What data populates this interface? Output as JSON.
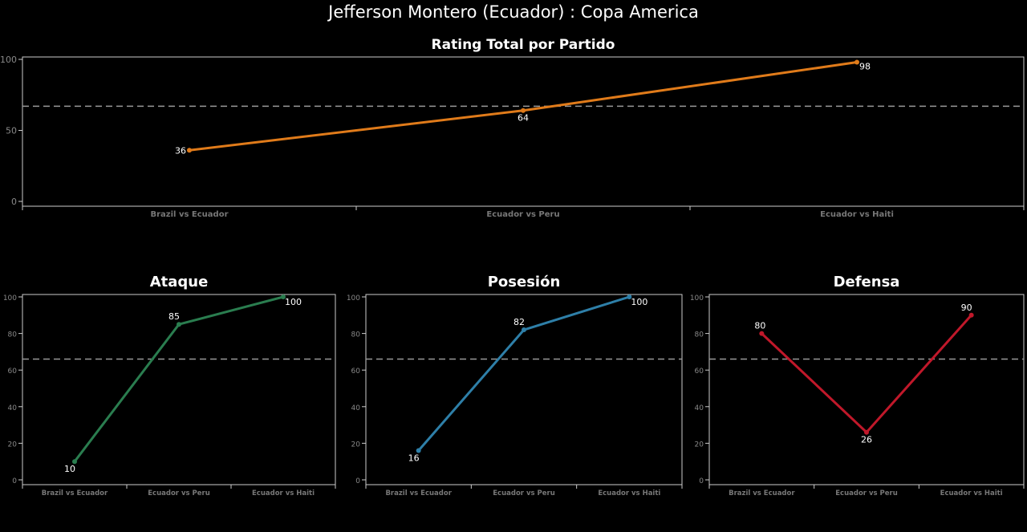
{
  "title": "Jefferson Montero (Ecuador) :  Copa  America",
  "chart_data": [
    {
      "type": "line",
      "title": "Rating Total por Partido",
      "categories": [
        "Brazil vs Ecuador",
        "Ecuador vs Peru",
        "Ecuador vs Haiti"
      ],
      "values": [
        36,
        64,
        98
      ],
      "ylim": [
        0,
        100
      ],
      "yticks": [
        0,
        50,
        100
      ],
      "reference_line": 67,
      "color": "#e07b1a",
      "grid": false
    },
    {
      "type": "line",
      "title": "Ataque",
      "categories": [
        "Brazil vs Ecuador",
        "Ecuador vs Peru",
        "Ecuador vs Haiti"
      ],
      "values": [
        10,
        85,
        100
      ],
      "ylim": [
        0,
        100
      ],
      "yticks": [
        0,
        20,
        40,
        60,
        80,
        100
      ],
      "reference_line": 66,
      "color": "#2a7d4f",
      "grid": false
    },
    {
      "type": "line",
      "title": "Posesión",
      "categories": [
        "Brazil vs Ecuador",
        "Ecuador vs Peru",
        "Ecuador vs Haiti"
      ],
      "values": [
        16,
        82,
        100
      ],
      "ylim": [
        0,
        100
      ],
      "yticks": [
        0,
        20,
        40,
        60,
        80,
        100
      ],
      "reference_line": 66,
      "color": "#2e7fa8",
      "grid": false
    },
    {
      "type": "line",
      "title": "Defensa",
      "categories": [
        "Brazil vs Ecuador",
        "Ecuador vs Peru",
        "Ecuador vs Haiti"
      ],
      "values": [
        80,
        26,
        90
      ],
      "ylim": [
        0,
        100
      ],
      "yticks": [
        0,
        20,
        40,
        60,
        80,
        100
      ],
      "reference_line": 66,
      "color": "#c0182a",
      "grid": false
    }
  ]
}
